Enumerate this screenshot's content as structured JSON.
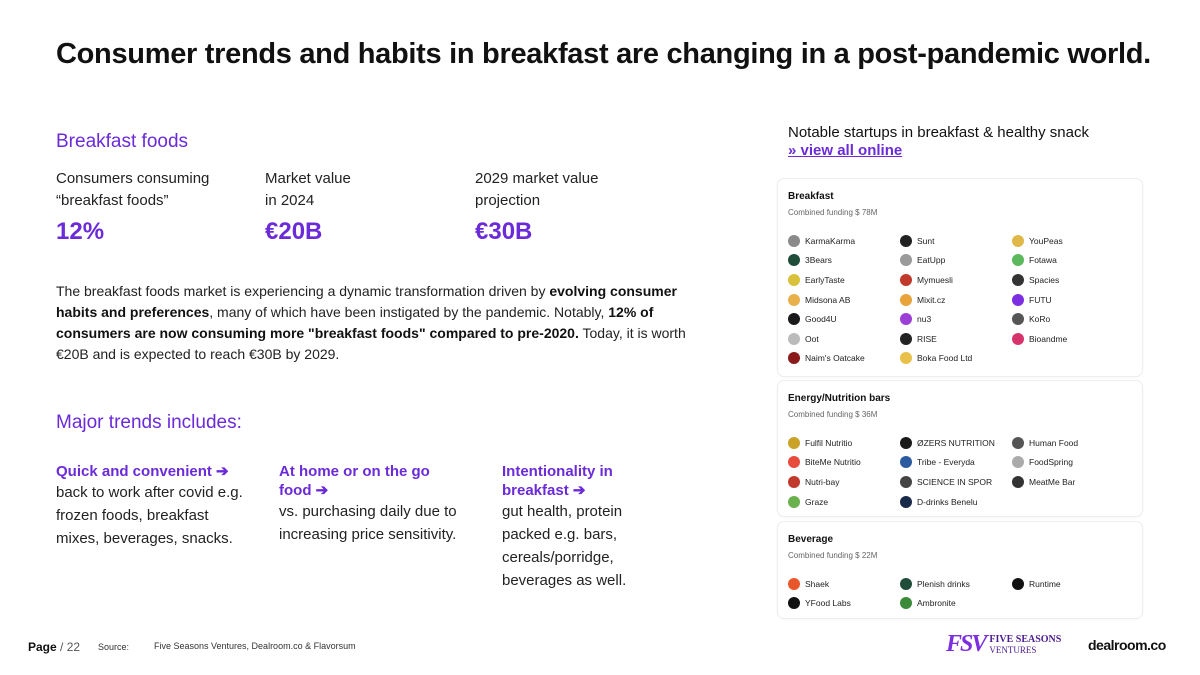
{
  "title": "Consumer trends and habits in breakfast are changing in a post-pandemic world.",
  "breakfast": {
    "heading": "Breakfast foods",
    "stats": [
      {
        "label_l1": "Consumers consuming",
        "label_l2": "“breakfast foods”",
        "value": "12%"
      },
      {
        "label_l1": "Market value",
        "label_l2": "in 2024",
        "value": "€20B"
      },
      {
        "label_l1": "2029 market value",
        "label_l2": "projection",
        "value": "€30B"
      }
    ],
    "para": {
      "p1": "The breakfast foods market is experiencing a dynamic transformation driven by ",
      "b1": "evolving consumer habits and preferences",
      "p2": ", many of which have been instigated by the pandemic. Notably, ",
      "b2": "12% of consumers are now consuming more \"breakfast foods\" compared to pre-2020.",
      "p3": " Today, it is worth €20B and is expected to reach €30B by 2029."
    }
  },
  "trends": {
    "heading": "Major trends includes:",
    "items": [
      {
        "title": "Quick and convenient ➔",
        "body": "back to work after covid e.g. frozen foods, breakfast mixes, beverages, snacks."
      },
      {
        "title": "At home or on the go food ➔",
        "body": "vs. purchasing daily due to increasing  price sensitivity."
      },
      {
        "title": "Intentionality in breakfast ➔",
        "body": "gut health, protein packed e.g. bars, cereals/porridge, beverages as well."
      }
    ]
  },
  "notable": {
    "text": "Notable startups in breakfast & healthy snack",
    "link": "» view all online"
  },
  "cards": [
    {
      "heading": "Breakfast",
      "funding": "Combined funding $ 78M",
      "companies": [
        {
          "name": "KarmaKarma",
          "color": "#8a8a8a"
        },
        {
          "name": "Sunt",
          "color": "#222222"
        },
        {
          "name": "YouPeas",
          "color": "#e0b84a"
        },
        {
          "name": "3Bears",
          "color": "#1f4d3a"
        },
        {
          "name": "EatUpp",
          "color": "#9a9a9a"
        },
        {
          "name": "Fotawa",
          "color": "#5cb85c"
        },
        {
          "name": "EarlyTaste",
          "color": "#d9c23a"
        },
        {
          "name": "Mymuesli",
          "color": "#c0392b"
        },
        {
          "name": "Spacies",
          "color": "#333333"
        },
        {
          "name": "Midsona AB",
          "color": "#e8b04a"
        },
        {
          "name": "Mixit.cz",
          "color": "#e8a33a"
        },
        {
          "name": "FUTU",
          "color": "#7b2fe0"
        },
        {
          "name": "Good4U",
          "color": "#1a1a1a"
        },
        {
          "name": "nu3",
          "color": "#9b3fd6"
        },
        {
          "name": "KoRo",
          "color": "#555555"
        },
        {
          "name": "Oot",
          "color": "#bbbbbb"
        },
        {
          "name": "RISE",
          "color": "#222222"
        },
        {
          "name": "Bioandme",
          "color": "#d6336c"
        },
        {
          "name": "Naim's Oatcake",
          "color": "#8b1a1a"
        },
        {
          "name": "Boka Food Ltd",
          "color": "#e8c04a"
        }
      ]
    },
    {
      "heading": "Energy/Nutrition bars",
      "funding": "Combined funding $ 36M",
      "companies": [
        {
          "name": "Fulfil Nutritio",
          "color": "#c9a227"
        },
        {
          "name": "ØZERS NUTRITION",
          "color": "#1a1a1a"
        },
        {
          "name": "Human Food",
          "color": "#555555"
        },
        {
          "name": "BiteMe Nutritio",
          "color": "#e74c3c"
        },
        {
          "name": "Tribe - Everyda",
          "color": "#2c5aa0"
        },
        {
          "name": "FoodSpring",
          "color": "#aaaaaa"
        },
        {
          "name": "Nutri-bay",
          "color": "#c0392b"
        },
        {
          "name": "SCIENCE IN SPOR",
          "color": "#444444"
        },
        {
          "name": "MeatMe Bar",
          "color": "#333333"
        },
        {
          "name": "Graze",
          "color": "#6ab04c"
        },
        {
          "name": "D-drinks Benelu",
          "color": "#1a2a4a"
        }
      ]
    },
    {
      "heading": "Beverage",
      "funding": "Combined funding $ 22M",
      "companies": [
        {
          "name": "Shaek",
          "color": "#e8562a"
        },
        {
          "name": "Plenish drinks",
          "color": "#1f4d3a"
        },
        {
          "name": "Runtime",
          "color": "#111111"
        },
        {
          "name": "YFood Labs",
          "color": "#111111"
        },
        {
          "name": "Ambronite",
          "color": "#3a8a3a"
        }
      ]
    }
  ],
  "footer": {
    "page_label": "Page",
    "page_num": "/ 22",
    "source_label": "Source:",
    "source": "Five Seasons Ventures, Dealroom.co & Flavorsum"
  },
  "brands": {
    "fsv_mono": "FSV",
    "fsv_line1": "FIVE SEASONS",
    "fsv_line2": "VENTURES",
    "dealroom": "dealroom.co"
  }
}
